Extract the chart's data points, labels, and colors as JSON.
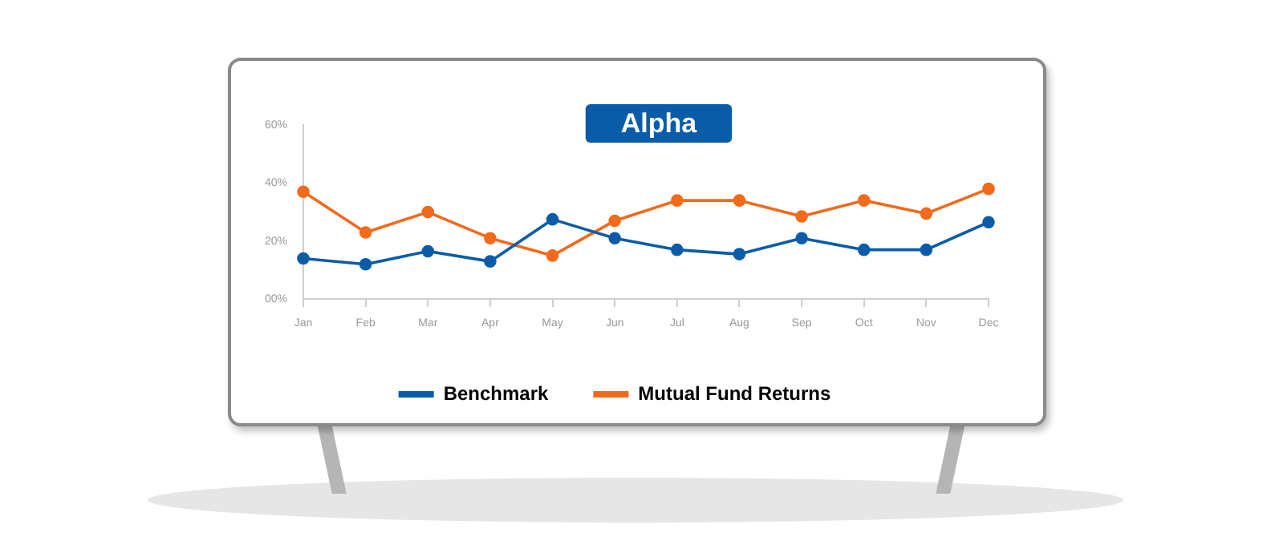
{
  "chart_data": {
    "type": "line",
    "title": "Alpha",
    "categories": [
      "Jan",
      "Feb",
      "Mar",
      "Apr",
      "May",
      "Jun",
      "Jul",
      "Aug",
      "Sep",
      "Oct",
      "Nov",
      "Dec"
    ],
    "series": [
      {
        "name": "Benchmark",
        "color": "#0b5ca8",
        "values": [
          14,
          12,
          16.5,
          13,
          27.5,
          21,
          17,
          15.5,
          21,
          17,
          17,
          26.5
        ]
      },
      {
        "name": "Mutual Fund Returns",
        "color": "#f26a1b",
        "values": [
          37,
          23,
          30,
          21,
          15,
          27,
          34,
          34,
          28.5,
          34,
          29.5,
          38
        ]
      }
    ],
    "ylim": [
      0,
      60
    ],
    "yticks": [
      {
        "value": 0,
        "label": "00%"
      },
      {
        "value": 20,
        "label": "20%"
      },
      {
        "value": 40,
        "label": "40%"
      },
      {
        "value": 60,
        "label": "60%"
      }
    ],
    "grid": false,
    "legend": "bottom",
    "marker": "circle",
    "line_style": "solid"
  }
}
